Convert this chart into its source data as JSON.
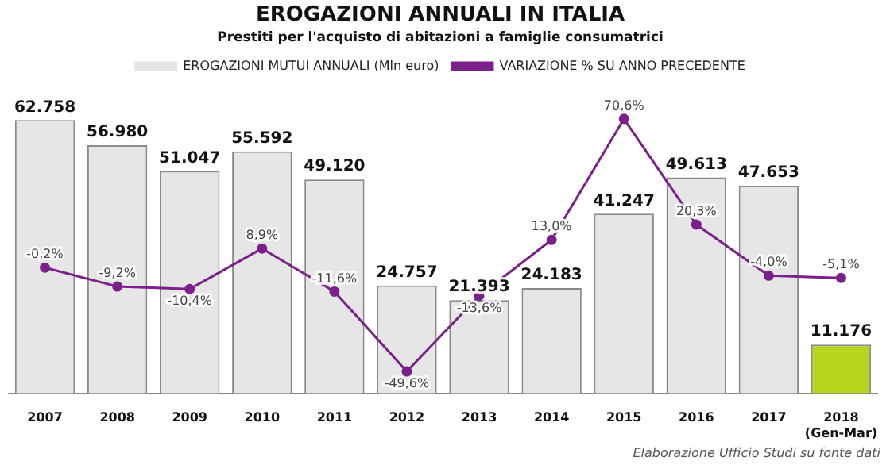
{
  "chart_data": {
    "type": "bar",
    "title": "EROGAZIONI ANNUALI IN ITALIA",
    "subtitle": "Prestiti per l'acquisto di abitazioni a famiglie consumatrici",
    "categories": [
      "2007",
      "2008",
      "2009",
      "2010",
      "2011",
      "2012",
      "2013",
      "2014",
      "2015",
      "2016",
      "2017",
      "2018\n(Gen-Mar)"
    ],
    "series": [
      {
        "name": "EROGAZIONI MUTUI ANNUALI (Mln euro)",
        "color": "#e6e6e6",
        "colors": [
          "#e6e6e6",
          "#e6e6e6",
          "#e6e6e6",
          "#e6e6e6",
          "#e6e6e6",
          "#e6e6e6",
          "#e6e6e6",
          "#e6e6e6",
          "#e6e6e6",
          "#e6e6e6",
          "#e6e6e6",
          "#b8d41c"
        ],
        "values": [
          62758,
          56980,
          51047,
          55592,
          49120,
          24757,
          21393,
          24183,
          41247,
          49613,
          47653,
          11176
        ],
        "value_labels": [
          "62.758",
          "56.980",
          "51.047",
          "55.592",
          "49.120",
          "24.757",
          "21.393",
          "24.183",
          "41.247",
          "49.613",
          "47.653",
          "11.176"
        ]
      },
      {
        "name": "VARIAZIONE % SU ANNO PRECEDENTE",
        "type": "line",
        "axis": "y2",
        "color": "#7b1f8a",
        "values": [
          -0.2,
          -9.2,
          -10.4,
          8.9,
          -11.6,
          -49.6,
          -13.6,
          13.0,
          70.6,
          20.3,
          -4.0,
          -5.1
        ],
        "value_labels": [
          "-0,2%",
          "-9,2%",
          "-10,4%",
          "8,9%",
          "-11,6%",
          "-49,6%",
          "-13,6%",
          "13,0%",
          "70,6%",
          "20,3%",
          "-4,0%",
          "-5,1%"
        ]
      }
    ],
    "tick_labels": "x",
    "legend": "top",
    "marker": "circle",
    "grid": false,
    "annotations": [
      "Elaborazione Ufficio Studi su fonte dati"
    ]
  }
}
